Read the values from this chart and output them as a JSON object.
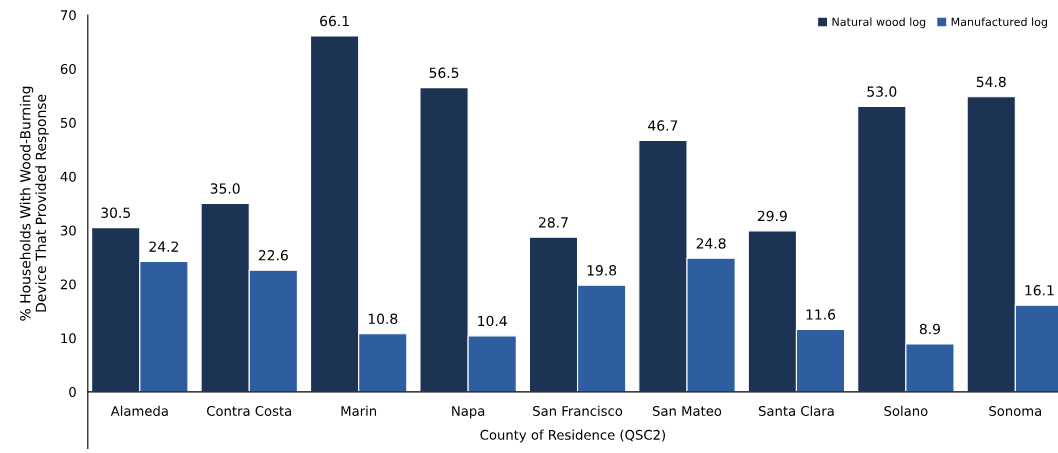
{
  "chart_data": {
    "type": "bar",
    "categories": [
      "Alameda",
      "Contra Costa",
      "Marin",
      "Napa",
      "San Francisco",
      "San Mateo",
      "Santa Clara",
      "Solano",
      "Sonoma"
    ],
    "series": [
      {
        "name": "Natural wood log",
        "color": "#1c3354",
        "values": [
          30.5,
          35.0,
          66.1,
          56.5,
          28.7,
          46.7,
          29.9,
          53.0,
          54.8
        ],
        "value_labels": [
          "30.5",
          "35.0",
          "66.1",
          "56.5",
          "28.7",
          "46.7",
          "29.9",
          "53.0",
          "54.8"
        ]
      },
      {
        "name": "Manufactured log",
        "color": "#2e5e9f",
        "values": [
          24.2,
          22.6,
          10.8,
          10.4,
          19.8,
          24.8,
          11.6,
          8.9,
          16.1
        ],
        "value_labels": [
          "24.2",
          "22.6",
          "10.8",
          "10.4",
          "19.8",
          "24.8",
          "11.6",
          "8.9",
          "16.1"
        ]
      }
    ],
    "xlabel": "County of Residence (QSC2)",
    "ylabel": "% Households With Wood-Burning\nDevice That Provided Response",
    "ylim": [
      0,
      70
    ],
    "yticks": [
      0,
      10,
      20,
      30,
      40,
      50,
      60,
      70
    ],
    "grid": false,
    "legend": "top right"
  }
}
